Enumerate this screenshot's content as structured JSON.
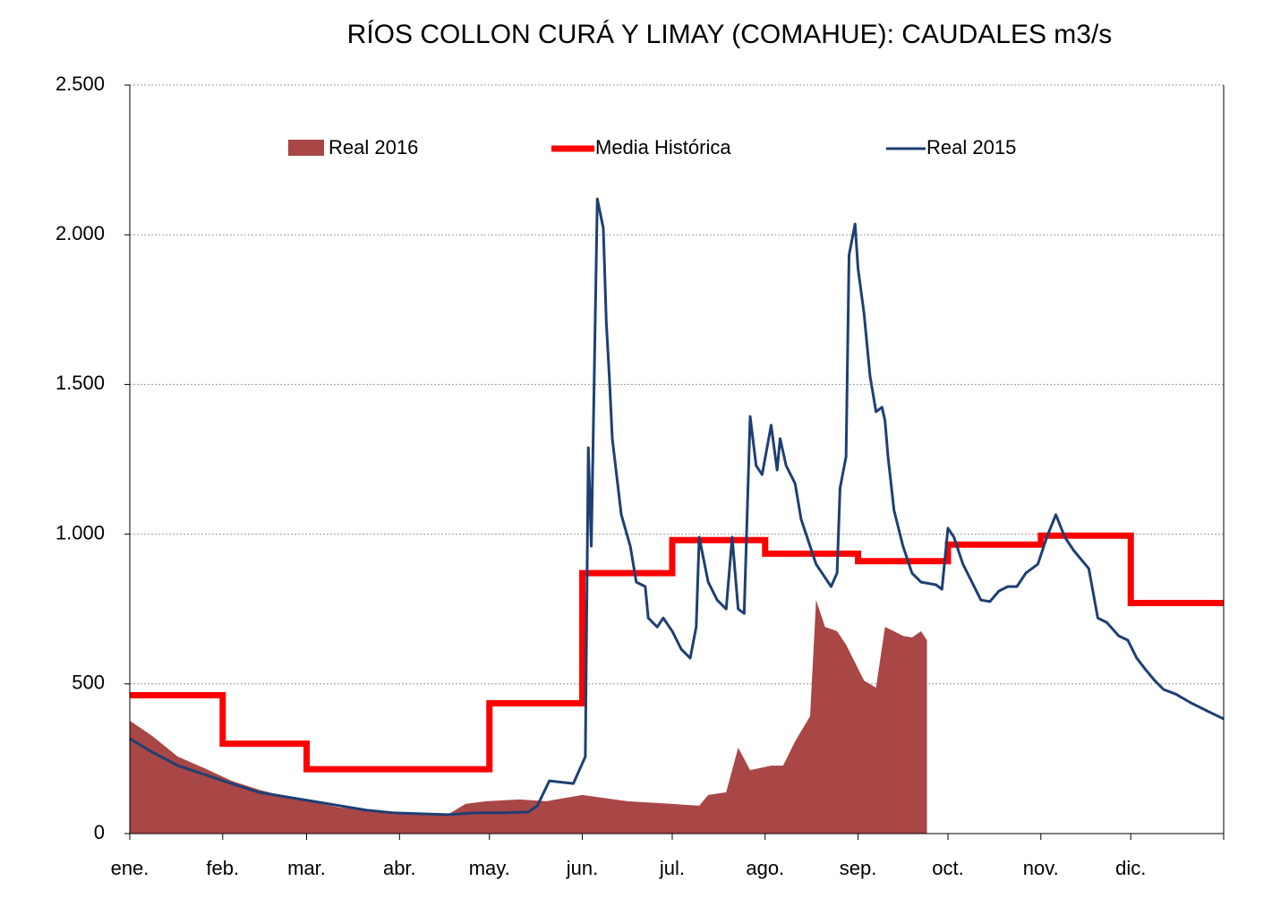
{
  "chart_data": {
    "type": "line",
    "title": "RÍOS COLLON CURÁ Y LIMAY (COMAHUE): CAUDALES m3/s",
    "xlim": [
      0,
      365
    ],
    "xticks": [
      {
        "value": 0,
        "label": "ene."
      },
      {
        "value": 31,
        "label": "feb."
      },
      {
        "value": 59,
        "label": "mar."
      },
      {
        "value": 90,
        "label": "abr."
      },
      {
        "value": 120,
        "label": "may."
      },
      {
        "value": 151,
        "label": "jun."
      },
      {
        "value": 181,
        "label": "jul."
      },
      {
        "value": 212,
        "label": "ago."
      },
      {
        "value": 243,
        "label": "sep."
      },
      {
        "value": 273,
        "label": "oct."
      },
      {
        "value": 304,
        "label": "nov."
      },
      {
        "value": 334,
        "label": "dic."
      }
    ],
    "ylim": [
      0,
      2500
    ],
    "yticks": [
      0,
      {
        "value": 500,
        "label": "500"
      },
      {
        "value": 1000,
        "label": "1.000"
      },
      {
        "value": 1500,
        "label": "1.500"
      },
      {
        "value": 2000,
        "label": "2.000"
      },
      {
        "value": 2500,
        "label": "2.500"
      }
    ],
    "grid": true,
    "series": [
      {
        "name": "Real 2016",
        "color": "#a94646",
        "kind": "area",
        "x": [
          0,
          7.5,
          16,
          25,
          34,
          43,
          52,
          61,
          70,
          79,
          88,
          97,
          106,
          112,
          119,
          130,
          139,
          151,
          166,
          181,
          190,
          193,
          199,
          203,
          207,
          214,
          218,
          222,
          227,
          229,
          232,
          236,
          239,
          242,
          245,
          249,
          252,
          255,
          258,
          261,
          264,
          266
        ],
        "values": [
          377,
          326,
          257,
          218,
          176,
          147,
          123,
          105,
          87,
          78,
          69,
          63,
          63,
          99,
          108,
          114,
          108,
          129,
          108,
          99,
          93,
          129,
          138,
          287,
          212,
          227,
          227,
          308,
          392,
          780,
          690,
          676,
          631,
          571,
          511,
          487,
          690,
          676,
          660,
          655,
          676,
          646
        ]
      },
      {
        "name": "Media Histórica",
        "color": "#ff0000",
        "kind": "step",
        "x": [
          0,
          31,
          59,
          90,
          120,
          151,
          181,
          212,
          243,
          273,
          304,
          334,
          365
        ],
        "values": [
          462,
          300,
          215,
          215,
          435,
          870,
          980,
          935,
          910,
          965,
          995,
          770,
          770
        ]
      },
      {
        "name": "Real 2015",
        "color": "#1f3f73",
        "kind": "line",
        "x": [
          0,
          7.5,
          16,
          25,
          34,
          43,
          52,
          61,
          70,
          79,
          88,
          97,
          106,
          115,
          124,
          133,
          136,
          140,
          148,
          150,
          152,
          153,
          154,
          156,
          158,
          159,
          160,
          161,
          164,
          167,
          169,
          172,
          173,
          176,
          178,
          181,
          184,
          187,
          189,
          190,
          193,
          196,
          199,
          201,
          203,
          205,
          207,
          209,
          211,
          214,
          216,
          217,
          219,
          222,
          224,
          227,
          229,
          231,
          234,
          236,
          237,
          239,
          240,
          242,
          243,
          245,
          247,
          249,
          251,
          252,
          253,
          255,
          258,
          261,
          264,
          269,
          271,
          273,
          275,
          278,
          281,
          284,
          287,
          290,
          293,
          296,
          299,
          303,
          306,
          309,
          312,
          315,
          320,
          323,
          326,
          330,
          333,
          336,
          339,
          342,
          345,
          349,
          354,
          360,
          365
        ],
        "values": [
          317,
          272,
          227,
          197,
          167,
          138,
          123,
          108,
          93,
          78,
          69,
          66,
          63,
          69,
          69,
          72,
          93,
          176,
          167,
          212,
          257,
          1289,
          960,
          2120,
          2022,
          1708,
          1528,
          1319,
          1065,
          960,
          840,
          825,
          720,
          690,
          720,
          676,
          616,
          586,
          690,
          990,
          840,
          780,
          750,
          990,
          750,
          735,
          1393,
          1229,
          1199,
          1364,
          1214,
          1319,
          1229,
          1169,
          1050,
          960,
          900,
          870,
          825,
          870,
          1154,
          1259,
          1932,
          2036,
          1887,
          1737,
          1528,
          1409,
          1424,
          1379,
          1259,
          1080,
          960,
          870,
          840,
          831,
          816,
          1020,
          990,
          900,
          840,
          780,
          775,
          810,
          825,
          825,
          870,
          900,
          990,
          1065,
          990,
          945,
          885,
          720,
          705,
          660,
          646,
          586,
          547,
          511,
          481,
          466,
          437,
          407,
          383
        ]
      }
    ]
  }
}
